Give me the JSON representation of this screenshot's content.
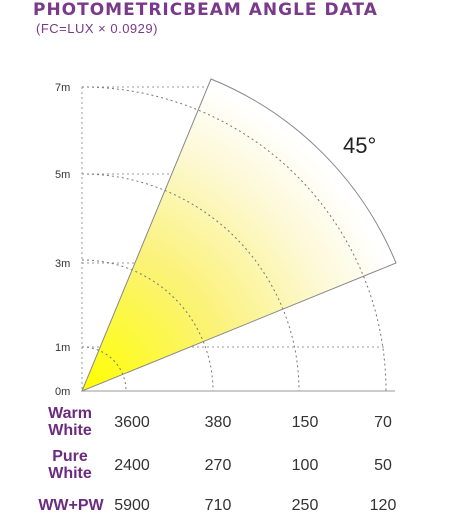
{
  "header": {
    "title": "PHOTOMETRICBEAM ANGLE DATA",
    "subtitle": "(FC=LUX × 0.0929)"
  },
  "diagram": {
    "beam_angle_label": "45°",
    "distance_labels": [
      "0m",
      "1m",
      "3m",
      "5m",
      "7m"
    ],
    "beam_fill_start": "#ffff00",
    "beam_fill_end": "#ffffff",
    "guide_color": "#999999"
  },
  "table": {
    "rows": [
      {
        "label_line1": "Warm",
        "label_line2": "White",
        "values": [
          "3600",
          "380",
          "150",
          "70"
        ]
      },
      {
        "label_line1": "Pure",
        "label_line2": "White",
        "values": [
          "2400",
          "270",
          "100",
          "50"
        ]
      },
      {
        "label_line1": "WW+PW",
        "label_line2": "",
        "values": [
          "5900",
          "710",
          "250",
          "120"
        ]
      }
    ]
  }
}
